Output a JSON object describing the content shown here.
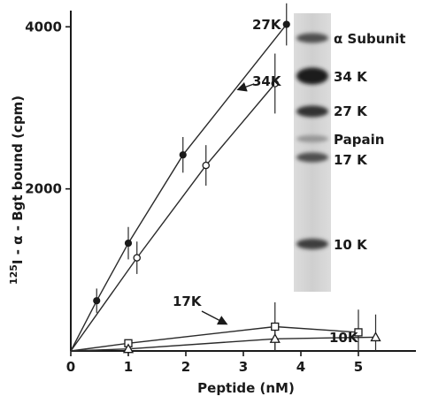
{
  "chart_data": {
    "type": "line",
    "xlabel": "Peptide (nM)",
    "ylabel_prefix": "125",
    "ylabel_main": "I - α - Bgt bound (cpm)",
    "xlim": [
      0,
      6
    ],
    "ylim": [
      0,
      4200
    ],
    "x_ticks": [
      0,
      1,
      2,
      3,
      4,
      5
    ],
    "x_tick_labels": [
      "0",
      "1",
      "2",
      "3",
      "4",
      "5"
    ],
    "y_ticks": [
      2000,
      4000
    ],
    "y_tick_labels": [
      "2000",
      "4000"
    ],
    "series": [
      {
        "name": "27K",
        "marker": "filled-circle",
        "points": [
          {
            "x": 0,
            "y": 0,
            "err": 0
          },
          {
            "x": 0.45,
            "y": 620,
            "err": 150
          },
          {
            "x": 1.0,
            "y": 1330,
            "err": 200
          },
          {
            "x": 1.95,
            "y": 2420,
            "err": 220
          },
          {
            "x": 3.75,
            "y": 4030,
            "err": 260
          }
        ]
      },
      {
        "name": "34K",
        "marker": "open-circle",
        "points": [
          {
            "x": 0,
            "y": 0,
            "err": 0
          },
          {
            "x": 1.15,
            "y": 1150,
            "err": 200
          },
          {
            "x": 2.35,
            "y": 2290,
            "err": 250
          },
          {
            "x": 3.55,
            "y": 3300,
            "err": 370
          }
        ]
      },
      {
        "name": "17K",
        "marker": "open-square",
        "points": [
          {
            "x": 0,
            "y": 0,
            "err": 0
          },
          {
            "x": 1.0,
            "y": 95,
            "err": 0
          },
          {
            "x": 3.55,
            "y": 300,
            "err": 300
          },
          {
            "x": 5.0,
            "y": 230,
            "err": 280
          }
        ]
      },
      {
        "name": "10K",
        "marker": "open-triangle",
        "points": [
          {
            "x": 0,
            "y": 0,
            "err": 0
          },
          {
            "x": 1.0,
            "y": 25,
            "err": 0
          },
          {
            "x": 3.55,
            "y": 150,
            "err": 150
          },
          {
            "x": 5.3,
            "y": 170,
            "err": 280
          }
        ]
      }
    ],
    "gel_bands": [
      {
        "label": "α Subunit",
        "intensity": 0.7
      },
      {
        "label": "34 K",
        "intensity": 0.95
      },
      {
        "label": "27 K",
        "intensity": 0.85
      },
      {
        "label": "Papain",
        "intensity": 0.35
      },
      {
        "label": "17 K",
        "intensity": 0.7
      },
      {
        "label": "10 K",
        "intensity": 0.8
      }
    ]
  }
}
